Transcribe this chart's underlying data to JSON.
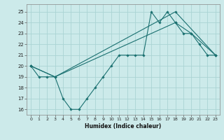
{
  "bg_color": "#cceaea",
  "grid_color": "#aad4d4",
  "line_color": "#1a7070",
  "xlim": [
    -0.5,
    23.5
  ],
  "ylim": [
    15.5,
    25.7
  ],
  "xticks": [
    0,
    1,
    2,
    3,
    4,
    5,
    6,
    7,
    8,
    9,
    10,
    11,
    12,
    13,
    14,
    15,
    16,
    17,
    18,
    19,
    20,
    21,
    22,
    23
  ],
  "yticks": [
    16,
    17,
    18,
    19,
    20,
    21,
    22,
    23,
    24,
    25
  ],
  "xlabel": "Humidex (Indice chaleur)",
  "line1_x": [
    0,
    1,
    2,
    3,
    4,
    5,
    6,
    7,
    8,
    9,
    10,
    11,
    12,
    13,
    14,
    15,
    16,
    17,
    18,
    19,
    20,
    21,
    22,
    23
  ],
  "line1_y": [
    20,
    19,
    19,
    19,
    17,
    16,
    16,
    17,
    18,
    19,
    20,
    21,
    21,
    21,
    21,
    25,
    24,
    25,
    24,
    23,
    23,
    22,
    21,
    21
  ],
  "line2_x": [
    0,
    3,
    18,
    20,
    23
  ],
  "line2_y": [
    20,
    19,
    24,
    23,
    21
  ],
  "line3_x": [
    0,
    3,
    18,
    23
  ],
  "line3_y": [
    20,
    19,
    25,
    21
  ]
}
